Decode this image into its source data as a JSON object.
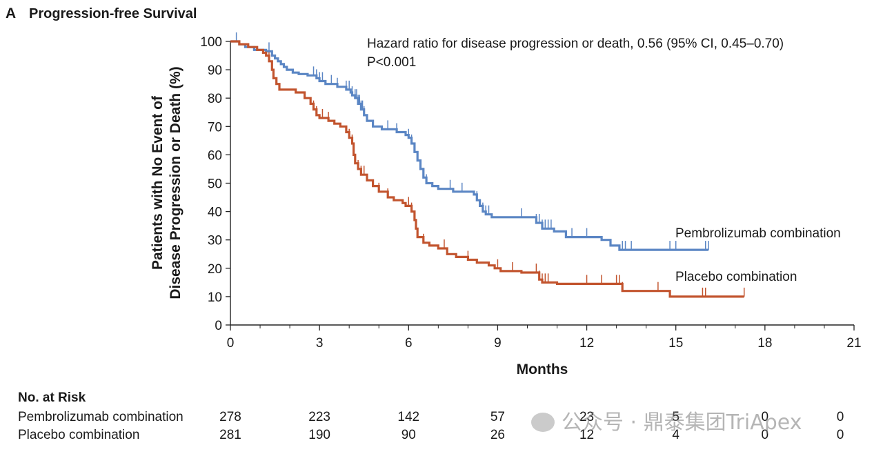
{
  "panel": {
    "letter": "A",
    "title": "Progression-free Survival"
  },
  "annotation": {
    "line1": "Hazard ratio for disease progression or death, 0.56 (95% CI, 0.45–0.70)",
    "line2": "P<0.001"
  },
  "colors": {
    "pembrolizumab": "#5b86c4",
    "placebo": "#c2542e",
    "axis": "#222222"
  },
  "chart_data": {
    "type": "line",
    "subtype": "kaplan-meier",
    "title": "Progression-free Survival",
    "xlabel": "Months",
    "ylabel": "Patients with No Event of Disease Progression or Death (%)",
    "ylabel_lines": [
      "Patients with No Event of",
      "Disease Progression or Death (%)"
    ],
    "xlim": [
      0,
      21
    ],
    "ylim": [
      0,
      100
    ],
    "x_ticks": [
      0,
      3,
      6,
      9,
      12,
      15,
      18,
      21
    ],
    "y_ticks": [
      0,
      10,
      20,
      30,
      40,
      50,
      60,
      70,
      80,
      90,
      100
    ],
    "grid": false,
    "series": [
      {
        "name": "Pembrolizumab combination",
        "color": "#5b86c4",
        "steps": [
          [
            0,
            100
          ],
          [
            0.3,
            99
          ],
          [
            0.5,
            98
          ],
          [
            0.8,
            97
          ],
          [
            1.2,
            96.5
          ],
          [
            1.4,
            95
          ],
          [
            1.5,
            94
          ],
          [
            1.6,
            93
          ],
          [
            1.7,
            92
          ],
          [
            1.8,
            91
          ],
          [
            1.9,
            90
          ],
          [
            2.1,
            89
          ],
          [
            2.3,
            88.5
          ],
          [
            2.6,
            88
          ],
          [
            2.9,
            87
          ],
          [
            3.0,
            86
          ],
          [
            3.2,
            85
          ],
          [
            3.6,
            84
          ],
          [
            3.9,
            83
          ],
          [
            4.05,
            82
          ],
          [
            4.1,
            81
          ],
          [
            4.2,
            80
          ],
          [
            4.3,
            78
          ],
          [
            4.4,
            76
          ],
          [
            4.5,
            74
          ],
          [
            4.6,
            72
          ],
          [
            4.8,
            70
          ],
          [
            5.1,
            69
          ],
          [
            5.6,
            68
          ],
          [
            5.9,
            67
          ],
          [
            6.0,
            66
          ],
          [
            6.1,
            64
          ],
          [
            6.2,
            61
          ],
          [
            6.3,
            58
          ],
          [
            6.4,
            55
          ],
          [
            6.5,
            52
          ],
          [
            6.6,
            50
          ],
          [
            6.8,
            49
          ],
          [
            7.0,
            48
          ],
          [
            7.5,
            47
          ],
          [
            8.2,
            46
          ],
          [
            8.3,
            44
          ],
          [
            8.4,
            42
          ],
          [
            8.5,
            40
          ],
          [
            8.6,
            39
          ],
          [
            8.8,
            38
          ],
          [
            10.3,
            36
          ],
          [
            10.5,
            34
          ],
          [
            10.9,
            33
          ],
          [
            11.3,
            31
          ],
          [
            12.5,
            30
          ],
          [
            12.8,
            28
          ],
          [
            13.1,
            26.5
          ],
          [
            16.1,
            26.5
          ]
        ],
        "censor_x": [
          0.2,
          1.3,
          2.8,
          2.9,
          3.0,
          3.1,
          3.4,
          3.6,
          3.9,
          4.0,
          4.1,
          4.2,
          4.25,
          4.3,
          4.35,
          4.4,
          4.45,
          4.5,
          5.3,
          5.6,
          6.0,
          6.1,
          6.2,
          6.3,
          6.4,
          6.6,
          7.4,
          7.8,
          8.3,
          8.5,
          8.6,
          8.7,
          9.8,
          10.3,
          10.4,
          10.5,
          10.6,
          10.7,
          10.8,
          11.5,
          12.0,
          13.2,
          13.3,
          13.5,
          14.8,
          15.0,
          16.0,
          16.1
        ]
      },
      {
        "name": "Placebo combination",
        "color": "#c2542e",
        "steps": [
          [
            0,
            100
          ],
          [
            0.3,
            99
          ],
          [
            0.6,
            98
          ],
          [
            0.9,
            97
          ],
          [
            1.1,
            96
          ],
          [
            1.2,
            95
          ],
          [
            1.3,
            93
          ],
          [
            1.4,
            90
          ],
          [
            1.45,
            87
          ],
          [
            1.55,
            85
          ],
          [
            1.65,
            83
          ],
          [
            2.2,
            82
          ],
          [
            2.5,
            80
          ],
          [
            2.7,
            78
          ],
          [
            2.8,
            76
          ],
          [
            2.9,
            74
          ],
          [
            3.0,
            73
          ],
          [
            3.3,
            72
          ],
          [
            3.5,
            71
          ],
          [
            3.7,
            70
          ],
          [
            3.9,
            68
          ],
          [
            4.0,
            66
          ],
          [
            4.1,
            64
          ],
          [
            4.15,
            60
          ],
          [
            4.2,
            57
          ],
          [
            4.3,
            55
          ],
          [
            4.4,
            53
          ],
          [
            4.6,
            51
          ],
          [
            4.8,
            49
          ],
          [
            5.0,
            47
          ],
          [
            5.3,
            45
          ],
          [
            5.5,
            44
          ],
          [
            5.8,
            43
          ],
          [
            5.9,
            42
          ],
          [
            6.1,
            40
          ],
          [
            6.2,
            37
          ],
          [
            6.25,
            34
          ],
          [
            6.3,
            31
          ],
          [
            6.5,
            29
          ],
          [
            6.7,
            28
          ],
          [
            7.0,
            27
          ],
          [
            7.3,
            25
          ],
          [
            7.6,
            24
          ],
          [
            8.0,
            23
          ],
          [
            8.3,
            22
          ],
          [
            8.7,
            21
          ],
          [
            8.9,
            20
          ],
          [
            9.1,
            19
          ],
          [
            9.8,
            18.5
          ],
          [
            10.4,
            16
          ],
          [
            10.5,
            15
          ],
          [
            11.0,
            14.5
          ],
          [
            13.0,
            14.5
          ],
          [
            13.2,
            12
          ],
          [
            14.8,
            10
          ],
          [
            17.3,
            10
          ]
        ],
        "censor_x": [
          1.3,
          2.8,
          2.9,
          3.1,
          3.3,
          4.0,
          4.1,
          4.2,
          4.3,
          4.4,
          4.5,
          5.0,
          5.3,
          6.0,
          6.1,
          6.3,
          6.5,
          7.2,
          8.0,
          9.0,
          9.5,
          10.3,
          10.4,
          10.5,
          10.6,
          10.7,
          12.0,
          12.5,
          13.0,
          13.1,
          13.2,
          14.4,
          15.9,
          16.0,
          17.3
        ]
      }
    ],
    "at_risk": {
      "title": "No. at Risk",
      "times": [
        0,
        3,
        6,
        9,
        12,
        15,
        18,
        21
      ],
      "rows": [
        {
          "name": "Pembrolizumab combination",
          "values": [
            278,
            223,
            142,
            57,
            23,
            5,
            0,
            0
          ]
        },
        {
          "name": "Placebo combination",
          "values": [
            281,
            190,
            90,
            26,
            12,
            4,
            0,
            0
          ]
        }
      ]
    }
  },
  "watermark": "公众号 · 鼎泰集团TriApex"
}
